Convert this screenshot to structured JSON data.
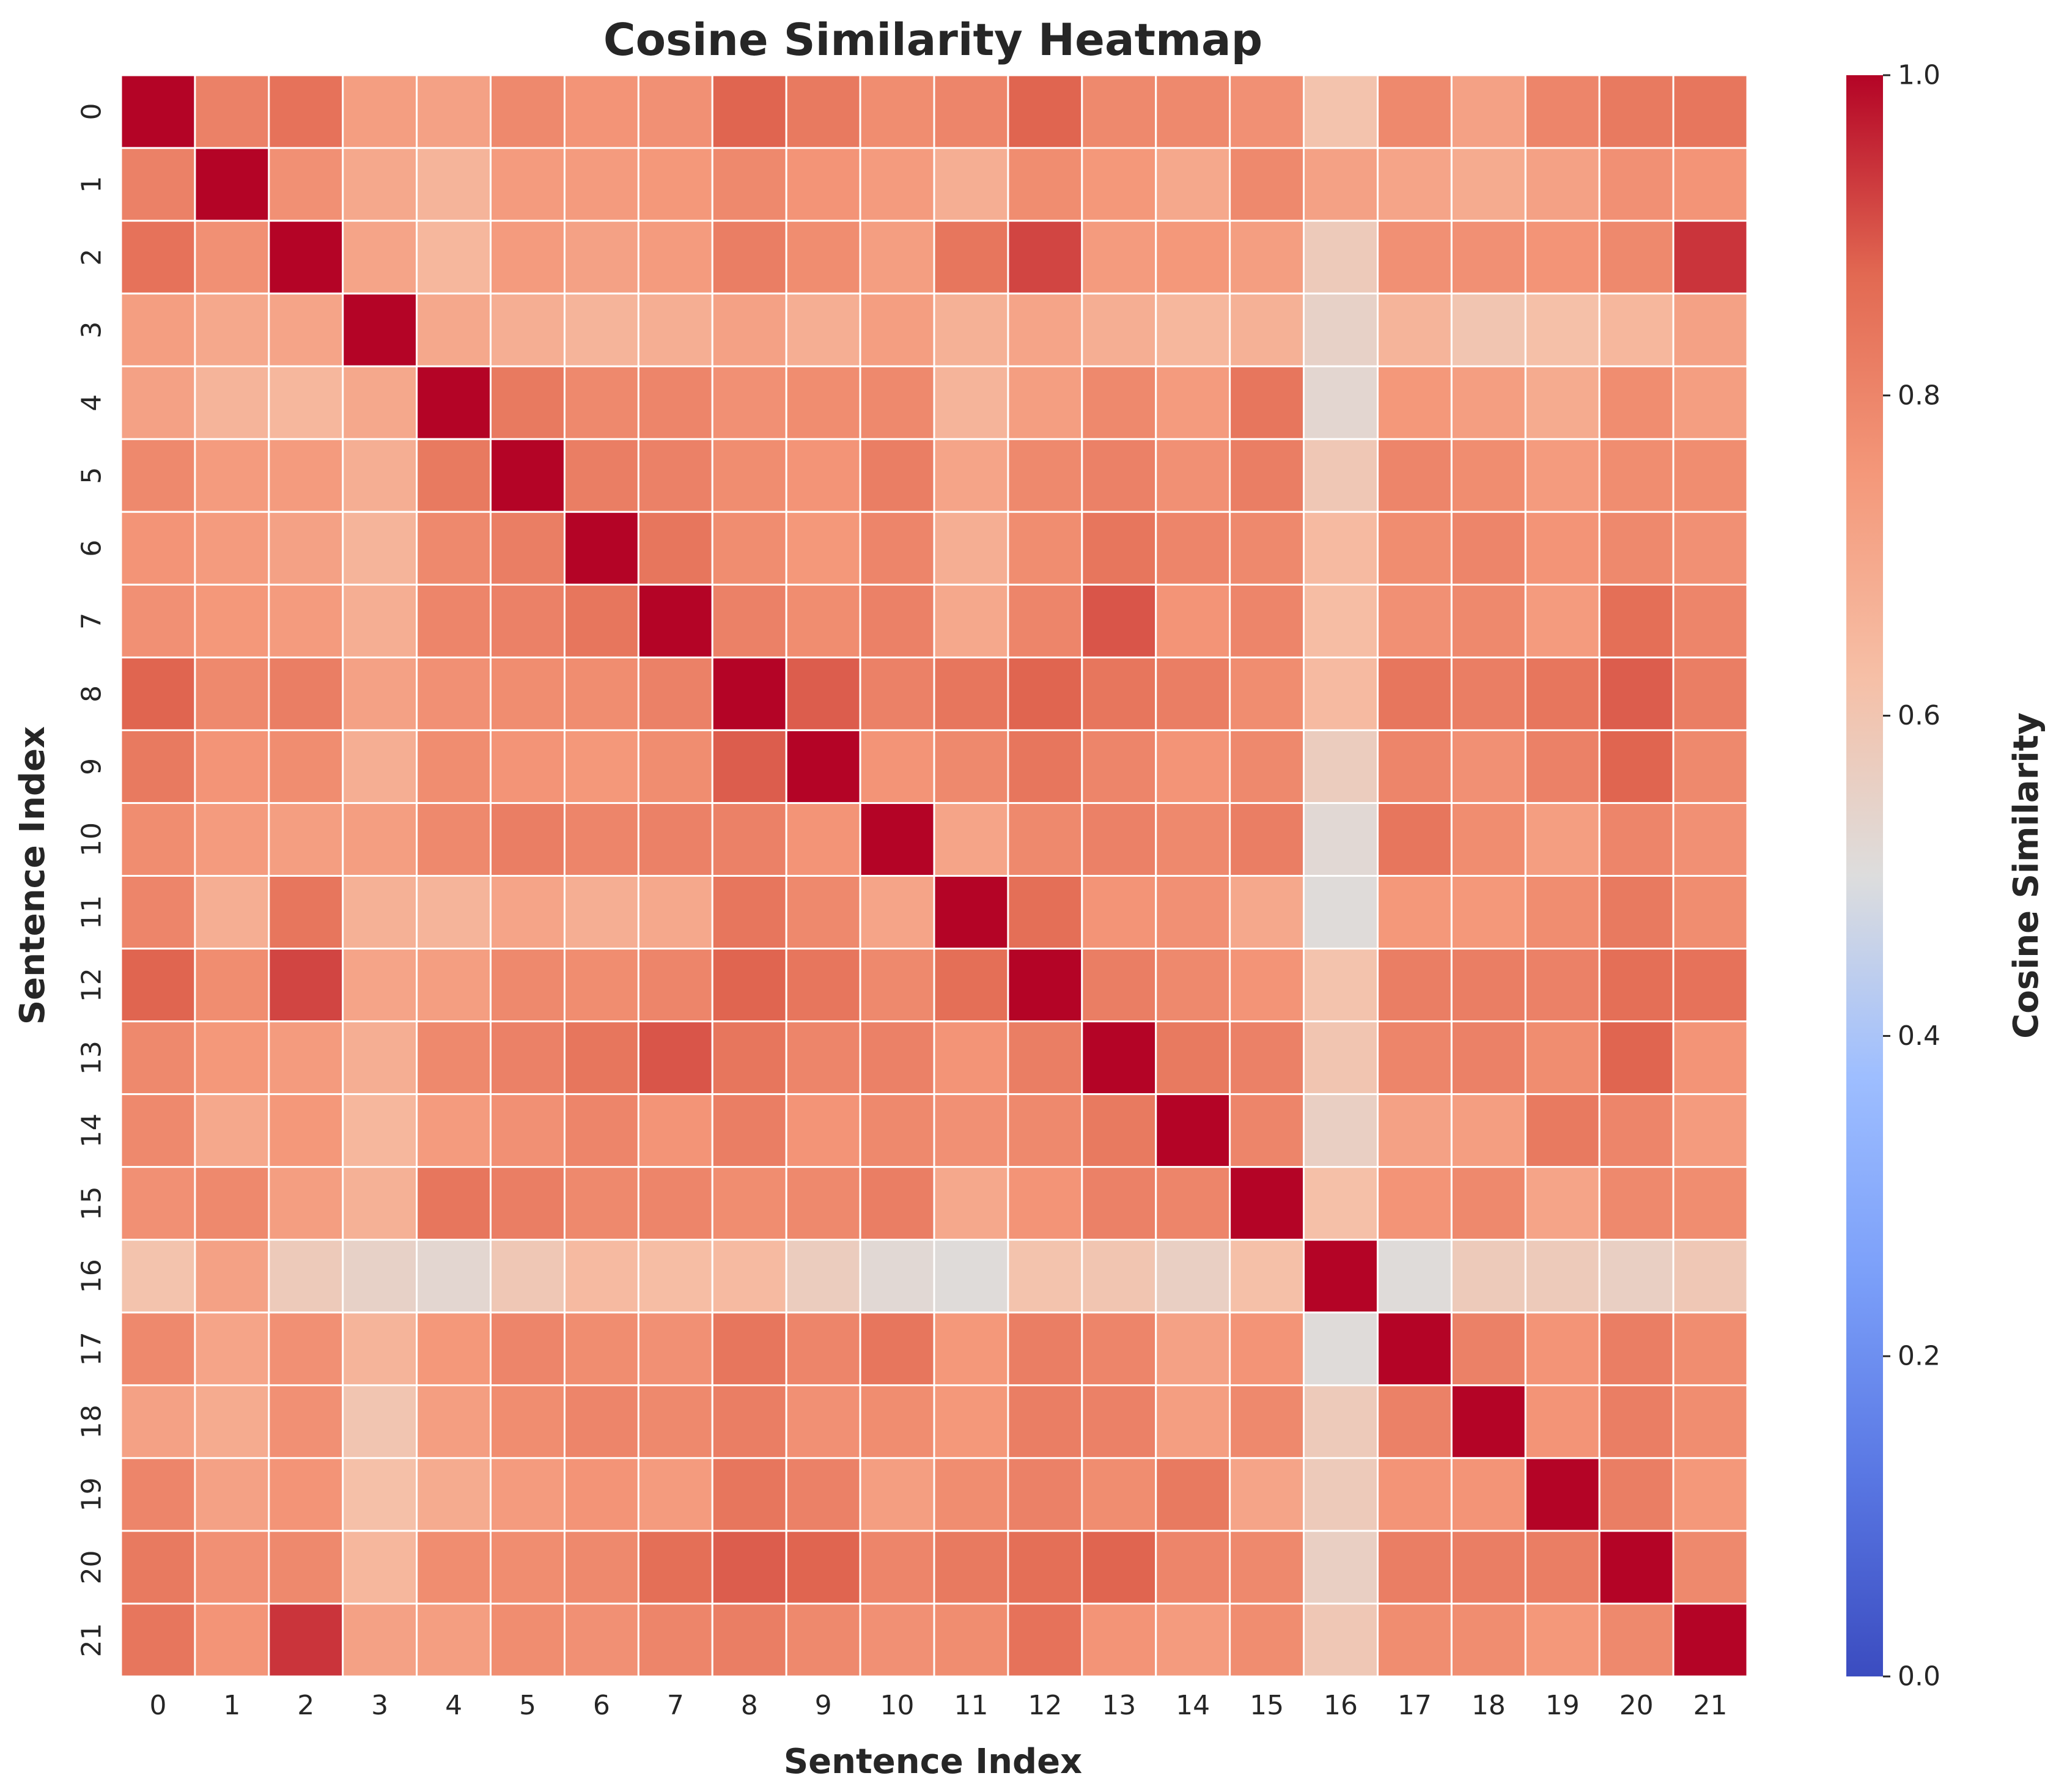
{
  "chart_data": {
    "type": "heatmap",
    "title": "Cosine Similarity Heatmap",
    "xlabel": "Sentence Index",
    "ylabel": "Sentence Index",
    "x_categories": [
      "0",
      "1",
      "2",
      "3",
      "4",
      "5",
      "6",
      "7",
      "8",
      "9",
      "10",
      "11",
      "12",
      "13",
      "14",
      "15",
      "16",
      "17",
      "18",
      "19",
      "20",
      "21"
    ],
    "y_categories": [
      "0",
      "1",
      "2",
      "3",
      "4",
      "5",
      "6",
      "7",
      "8",
      "9",
      "10",
      "11",
      "12",
      "13",
      "14",
      "15",
      "16",
      "17",
      "18",
      "19",
      "20",
      "21"
    ],
    "colormap": "coolwarm",
    "vmin": 0.0,
    "vmax": 1.0,
    "colorbar_label": "Cosine Similarity",
    "colorbar_ticks": [
      "0.0",
      "0.2",
      "0.4",
      "0.6",
      "0.8",
      "1.0"
    ],
    "values": [
      [
        1.0,
        0.81,
        0.85,
        0.73,
        0.72,
        0.79,
        0.76,
        0.77,
        0.88,
        0.83,
        0.78,
        0.8,
        0.88,
        0.79,
        0.79,
        0.77,
        0.61,
        0.79,
        0.72,
        0.8,
        0.83,
        0.84
      ],
      [
        0.81,
        1.0,
        0.77,
        0.7,
        0.66,
        0.74,
        0.74,
        0.75,
        0.79,
        0.76,
        0.74,
        0.68,
        0.78,
        0.75,
        0.7,
        0.79,
        0.72,
        0.71,
        0.69,
        0.72,
        0.77,
        0.76
      ],
      [
        0.85,
        0.77,
        1.0,
        0.71,
        0.65,
        0.74,
        0.72,
        0.74,
        0.82,
        0.78,
        0.73,
        0.84,
        0.92,
        0.74,
        0.75,
        0.73,
        0.58,
        0.77,
        0.77,
        0.76,
        0.79,
        0.94
      ],
      [
        0.73,
        0.7,
        0.71,
        1.0,
        0.7,
        0.68,
        0.66,
        0.68,
        0.72,
        0.68,
        0.73,
        0.67,
        0.71,
        0.68,
        0.65,
        0.67,
        0.55,
        0.66,
        0.6,
        0.62,
        0.65,
        0.72
      ],
      [
        0.72,
        0.66,
        0.65,
        0.7,
        1.0,
        0.83,
        0.79,
        0.8,
        0.77,
        0.78,
        0.79,
        0.66,
        0.73,
        0.79,
        0.74,
        0.84,
        0.53,
        0.75,
        0.73,
        0.69,
        0.78,
        0.73
      ],
      [
        0.79,
        0.74,
        0.74,
        0.68,
        0.83,
        1.0,
        0.82,
        0.81,
        0.78,
        0.76,
        0.82,
        0.71,
        0.79,
        0.81,
        0.77,
        0.82,
        0.59,
        0.8,
        0.78,
        0.74,
        0.78,
        0.78
      ],
      [
        0.76,
        0.74,
        0.72,
        0.66,
        0.79,
        0.82,
        1.0,
        0.84,
        0.78,
        0.75,
        0.8,
        0.68,
        0.78,
        0.84,
        0.8,
        0.79,
        0.64,
        0.78,
        0.8,
        0.76,
        0.79,
        0.77
      ],
      [
        0.77,
        0.75,
        0.74,
        0.68,
        0.8,
        0.81,
        0.84,
        1.0,
        0.81,
        0.78,
        0.81,
        0.7,
        0.8,
        0.9,
        0.76,
        0.8,
        0.63,
        0.77,
        0.79,
        0.74,
        0.86,
        0.8
      ],
      [
        0.88,
        0.79,
        0.82,
        0.72,
        0.77,
        0.78,
        0.78,
        0.81,
        1.0,
        0.89,
        0.81,
        0.84,
        0.88,
        0.84,
        0.82,
        0.78,
        0.64,
        0.84,
        0.82,
        0.84,
        0.89,
        0.82
      ],
      [
        0.83,
        0.76,
        0.78,
        0.68,
        0.78,
        0.76,
        0.75,
        0.78,
        0.89,
        1.0,
        0.76,
        0.79,
        0.84,
        0.8,
        0.76,
        0.79,
        0.57,
        0.8,
        0.77,
        0.81,
        0.88,
        0.79
      ],
      [
        0.78,
        0.74,
        0.73,
        0.73,
        0.79,
        0.82,
        0.8,
        0.81,
        0.81,
        0.76,
        1.0,
        0.71,
        0.79,
        0.81,
        0.79,
        0.82,
        0.52,
        0.84,
        0.78,
        0.73,
        0.8,
        0.77
      ],
      [
        0.8,
        0.68,
        0.84,
        0.67,
        0.66,
        0.71,
        0.68,
        0.7,
        0.84,
        0.79,
        0.71,
        1.0,
        0.86,
        0.76,
        0.77,
        0.7,
        0.51,
        0.75,
        0.75,
        0.78,
        0.83,
        0.78
      ],
      [
        0.88,
        0.78,
        0.92,
        0.71,
        0.73,
        0.79,
        0.78,
        0.8,
        0.88,
        0.84,
        0.79,
        0.86,
        1.0,
        0.82,
        0.79,
        0.76,
        0.61,
        0.82,
        0.82,
        0.81,
        0.86,
        0.85
      ],
      [
        0.79,
        0.75,
        0.74,
        0.68,
        0.79,
        0.81,
        0.84,
        0.9,
        0.84,
        0.8,
        0.81,
        0.76,
        0.82,
        1.0,
        0.83,
        0.81,
        0.6,
        0.8,
        0.81,
        0.78,
        0.88,
        0.76
      ],
      [
        0.79,
        0.7,
        0.75,
        0.65,
        0.74,
        0.77,
        0.8,
        0.76,
        0.82,
        0.76,
        0.79,
        0.77,
        0.79,
        0.83,
        1.0,
        0.8,
        0.56,
        0.72,
        0.73,
        0.83,
        0.8,
        0.74
      ],
      [
        0.77,
        0.79,
        0.73,
        0.67,
        0.84,
        0.82,
        0.79,
        0.8,
        0.78,
        0.79,
        0.82,
        0.7,
        0.76,
        0.81,
        0.8,
        1.0,
        0.62,
        0.76,
        0.79,
        0.71,
        0.79,
        0.78
      ],
      [
        0.61,
        0.72,
        0.58,
        0.55,
        0.53,
        0.59,
        0.64,
        0.63,
        0.64,
        0.57,
        0.52,
        0.51,
        0.61,
        0.6,
        0.56,
        0.62,
        1.0,
        0.51,
        0.58,
        0.58,
        0.56,
        0.59
      ],
      [
        0.79,
        0.71,
        0.77,
        0.66,
        0.75,
        0.8,
        0.78,
        0.77,
        0.84,
        0.8,
        0.84,
        0.75,
        0.82,
        0.8,
        0.72,
        0.76,
        0.51,
        1.0,
        0.81,
        0.76,
        0.82,
        0.78
      ],
      [
        0.72,
        0.69,
        0.77,
        0.6,
        0.73,
        0.78,
        0.8,
        0.79,
        0.82,
        0.77,
        0.78,
        0.75,
        0.82,
        0.81,
        0.73,
        0.79,
        0.58,
        0.81,
        1.0,
        0.76,
        0.82,
        0.78
      ],
      [
        0.8,
        0.72,
        0.76,
        0.62,
        0.69,
        0.74,
        0.76,
        0.74,
        0.84,
        0.81,
        0.73,
        0.78,
        0.81,
        0.78,
        0.83,
        0.71,
        0.58,
        0.76,
        0.76,
        1.0,
        0.82,
        0.75
      ],
      [
        0.83,
        0.77,
        0.79,
        0.65,
        0.78,
        0.78,
        0.79,
        0.86,
        0.89,
        0.88,
        0.8,
        0.83,
        0.86,
        0.88,
        0.8,
        0.79,
        0.56,
        0.82,
        0.82,
        0.82,
        1.0,
        0.79
      ],
      [
        0.84,
        0.76,
        0.94,
        0.72,
        0.73,
        0.78,
        0.77,
        0.8,
        0.82,
        0.79,
        0.77,
        0.78,
        0.85,
        0.76,
        0.74,
        0.78,
        0.59,
        0.78,
        0.78,
        0.75,
        0.79,
        1.0
      ]
    ]
  }
}
